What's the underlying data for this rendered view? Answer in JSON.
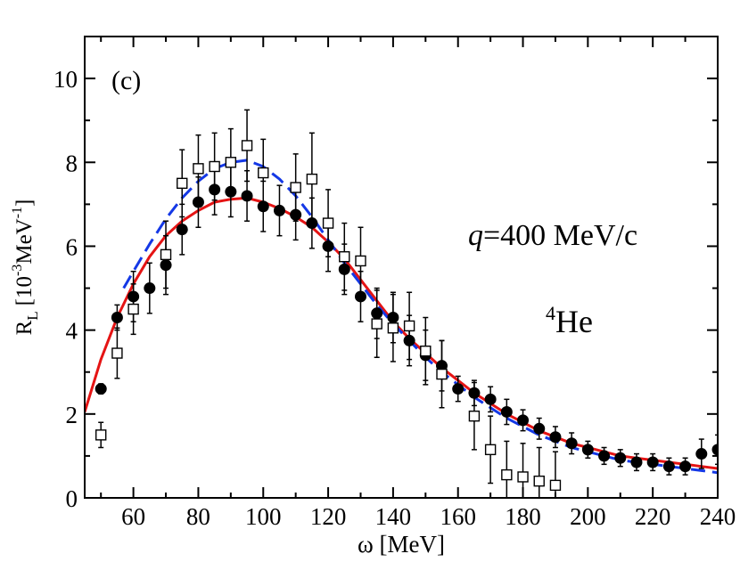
{
  "chart_data": {
    "type": "scatter",
    "panel_label": "(c)",
    "annotation_q": "q=400 MeV/c",
    "annotation_q_var": "q",
    "annotation_q_rest": "=400 MeV/c",
    "annotation_nucleus": "4He",
    "annotation_nucleus_mass": "4",
    "annotation_nucleus_symbol": "He",
    "xlabel": "ω  [MeV]",
    "ylabel": "R_L [10^-3 MeV^-1]",
    "ylabel_main": "R",
    "ylabel_sub": "L",
    "ylabel_unit_open": "[10",
    "ylabel_exp1": "-3",
    "ylabel_unit_mid": "MeV",
    "ylabel_exp2": "-1",
    "ylabel_unit_close": "]",
    "xlim": [
      45,
      240
    ],
    "ylim": [
      0,
      11
    ],
    "xticks": [
      60,
      80,
      100,
      120,
      140,
      160,
      180,
      200,
      220,
      240
    ],
    "yticks": [
      0,
      2,
      4,
      6,
      8,
      10
    ],
    "series": [
      {
        "name": "filled circles",
        "marker": "filled-circle",
        "color": "#000000",
        "points": [
          [
            50,
            2.6,
            0.12
          ],
          [
            55,
            4.3,
            0.3
          ],
          [
            60,
            4.8,
            0.6
          ],
          [
            65,
            5.0,
            0.6
          ],
          [
            70,
            5.55,
            0.7
          ],
          [
            75,
            6.4,
            0.6
          ],
          [
            80,
            7.05,
            0.6
          ],
          [
            85,
            7.35,
            0.6
          ],
          [
            90,
            7.3,
            0.6
          ],
          [
            95,
            7.2,
            0.6
          ],
          [
            100,
            6.95,
            0.6
          ],
          [
            105,
            6.85,
            0.6
          ],
          [
            110,
            6.75,
            0.6
          ],
          [
            115,
            6.55,
            0.6
          ],
          [
            120,
            6.0,
            0.6
          ],
          [
            125,
            5.45,
            0.6
          ],
          [
            130,
            4.8,
            0.6
          ],
          [
            135,
            4.4,
            0.6
          ],
          [
            140,
            4.3,
            0.6
          ],
          [
            145,
            3.75,
            0.6
          ],
          [
            150,
            3.4,
            0.6
          ],
          [
            155,
            3.15,
            0.6
          ],
          [
            160,
            2.6,
            0.3
          ],
          [
            165,
            2.5,
            0.3
          ],
          [
            170,
            2.35,
            0.3
          ],
          [
            175,
            2.05,
            0.3
          ],
          [
            180,
            1.85,
            0.25
          ],
          [
            185,
            1.65,
            0.25
          ],
          [
            190,
            1.45,
            0.25
          ],
          [
            195,
            1.3,
            0.25
          ],
          [
            200,
            1.15,
            0.2
          ],
          [
            205,
            1.0,
            0.2
          ],
          [
            210,
            0.95,
            0.2
          ],
          [
            215,
            0.85,
            0.2
          ],
          [
            220,
            0.85,
            0.2
          ],
          [
            225,
            0.75,
            0.2
          ],
          [
            230,
            0.75,
            0.2
          ],
          [
            235,
            1.05,
            0.35
          ],
          [
            240,
            1.15,
            0.35
          ]
        ]
      },
      {
        "name": "open squares",
        "marker": "open-square",
        "color": "#000000",
        "points": [
          [
            50,
            1.5,
            0.3
          ],
          [
            55,
            3.45,
            0.6
          ],
          [
            60,
            4.5,
            0.6
          ],
          [
            70,
            5.8,
            0.8
          ],
          [
            75,
            7.5,
            0.8
          ],
          [
            80,
            7.85,
            0.8
          ],
          [
            85,
            7.9,
            0.8
          ],
          [
            90,
            8.0,
            0.8
          ],
          [
            95,
            8.4,
            0.85
          ],
          [
            100,
            7.75,
            0.8
          ],
          [
            110,
            7.4,
            0.8
          ],
          [
            115,
            7.6,
            1.1
          ],
          [
            120,
            6.55,
            0.8
          ],
          [
            125,
            5.75,
            0.8
          ],
          [
            130,
            5.65,
            0.8
          ],
          [
            135,
            4.15,
            0.8
          ],
          [
            140,
            4.05,
            0.8
          ],
          [
            145,
            4.1,
            0.8
          ],
          [
            150,
            3.5,
            0.8
          ],
          [
            155,
            2.95,
            0.8
          ],
          [
            165,
            1.95,
            0.8
          ],
          [
            170,
            1.15,
            0.8
          ],
          [
            175,
            0.55,
            0.8
          ],
          [
            180,
            0.5,
            0.8
          ],
          [
            185,
            0.4,
            0.8
          ],
          [
            190,
            0.3,
            0.8
          ]
        ]
      },
      {
        "name": "solid red curve",
        "style": "solid",
        "color": "#e51414",
        "x": [
          45,
          50,
          55,
          60,
          65,
          70,
          75,
          80,
          85,
          90,
          95,
          100,
          105,
          110,
          115,
          120,
          125,
          130,
          135,
          140,
          145,
          150,
          155,
          160,
          165,
          170,
          175,
          180,
          185,
          190,
          195,
          200,
          205,
          210,
          215,
          220,
          225,
          230,
          235,
          240
        ],
        "y": [
          2.05,
          3.3,
          4.3,
          5.1,
          5.75,
          6.25,
          6.6,
          6.85,
          7.05,
          7.12,
          7.15,
          7.05,
          6.9,
          6.7,
          6.45,
          6.1,
          5.7,
          5.2,
          4.7,
          4.2,
          3.8,
          3.45,
          3.1,
          2.8,
          2.5,
          2.25,
          2.0,
          1.8,
          1.6,
          1.45,
          1.3,
          1.2,
          1.1,
          1.0,
          0.95,
          0.9,
          0.85,
          0.8,
          0.75,
          0.7
        ]
      },
      {
        "name": "dashed blue curve",
        "style": "dashed",
        "color": "#1438e6",
        "x": [
          57,
          60,
          65,
          70,
          75,
          80,
          85,
          90,
          95,
          100,
          105,
          110,
          115,
          120,
          125,
          130,
          135,
          140,
          145,
          150,
          155,
          160,
          165,
          170,
          175,
          180,
          185,
          190,
          195,
          200,
          205,
          210,
          215,
          220,
          225,
          230,
          235,
          240
        ],
        "y": [
          5.0,
          5.4,
          6.05,
          6.65,
          7.15,
          7.55,
          7.85,
          8.0,
          8.05,
          7.9,
          7.6,
          7.2,
          6.7,
          6.15,
          5.6,
          5.1,
          4.6,
          4.15,
          3.75,
          3.35,
          3.0,
          2.7,
          2.4,
          2.15,
          1.9,
          1.7,
          1.5,
          1.35,
          1.2,
          1.1,
          1.0,
          0.9,
          0.85,
          0.8,
          0.75,
          0.7,
          0.65,
          0.6
        ]
      }
    ]
  }
}
